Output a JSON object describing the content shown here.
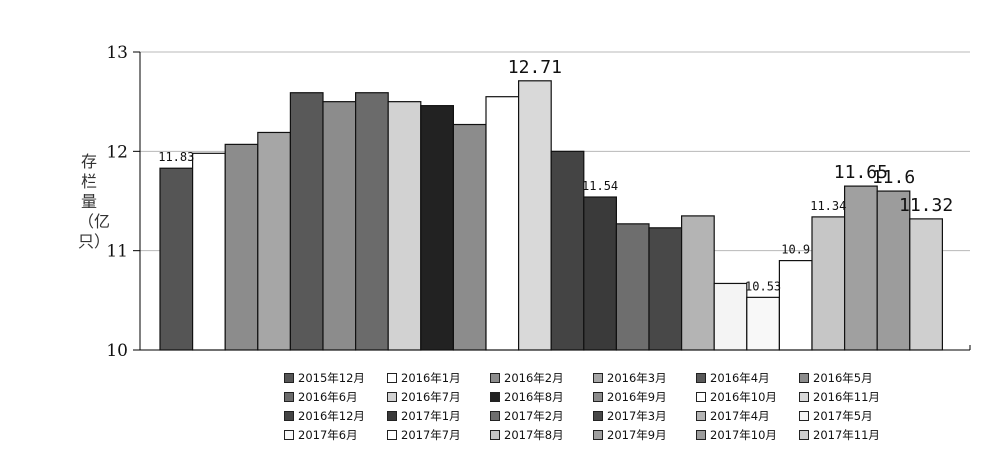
{
  "chart_data": {
    "type": "bar",
    "title": "",
    "xlabel": "",
    "ylabel": "存栏量（亿只）",
    "ylim": [
      10,
      13
    ],
    "yticks": [
      "10",
      "11",
      "12",
      "13"
    ],
    "grid": true,
    "legend_position": "bottom",
    "categories": [
      "2015年12月",
      "2016年1月",
      "2016年2月",
      "2016年3月",
      "2016年4月",
      "2016年5月",
      "2016年6月",
      "2016年7月",
      "2016年8月",
      "2016年9月",
      "2016年10月",
      "2016年11月",
      "2016年12月",
      "2017年1月",
      "2017年2月",
      "2017年3月",
      "2017年4月",
      "2017年5月",
      "2017年6月",
      "2017年7月",
      "2017年8月",
      "2017年9月",
      "2017年10月",
      "2017年11月"
    ],
    "values": [
      11.83,
      11.98,
      12.07,
      12.19,
      12.59,
      12.5,
      12.59,
      12.5,
      12.46,
      12.27,
      12.55,
      12.71,
      12.0,
      11.54,
      11.27,
      11.23,
      11.35,
      10.67,
      10.53,
      10.9,
      11.34,
      11.65,
      11.6,
      11.32
    ],
    "colors": [
      "#555555",
      "#ffffff",
      "#8c8c8c",
      "#a6a6a6",
      "#595959",
      "#8c8c8c",
      "#6b6b6b",
      "#d2d2d2",
      "#222222",
      "#8c8c8c",
      "#ffffff",
      "#d9d9d9",
      "#444444",
      "#3a3a3a",
      "#6e6e6e",
      "#484848",
      "#b4b4b4",
      "#f4f4f4",
      "#f8f8f8",
      "#ffffff",
      "#c6c6c6",
      "#a0a0a0",
      "#9c9c9c",
      "#cfcfcf"
    ],
    "data_labels": [
      {
        "index": 0,
        "text": "11.83",
        "size": "small"
      },
      {
        "index": 11,
        "text": "12.71",
        "size": "large"
      },
      {
        "index": 13,
        "text": "11.54",
        "size": "small"
      },
      {
        "index": 18,
        "text": "10.53",
        "size": "small"
      },
      {
        "index": 19,
        "text": "10.9",
        "size": "small"
      },
      {
        "index": 20,
        "text": "11.34",
        "size": "small"
      },
      {
        "index": 21,
        "text": "11.65",
        "size": "large"
      },
      {
        "index": 22,
        "text": "11.6",
        "size": "large"
      },
      {
        "index": 23,
        "text": "11.32",
        "size": "large"
      }
    ]
  }
}
